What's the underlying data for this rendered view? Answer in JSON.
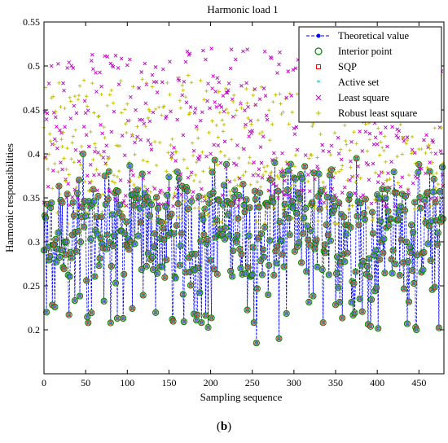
{
  "caption": {
    "open": "(",
    "letter": "b",
    "close": ")"
  },
  "chart_data": {
    "type": "line",
    "title": "Harmonic load 1",
    "xlabel": "Sampling sequence",
    "ylabel": "Harmonic responsibilities",
    "xlim": [
      0,
      480
    ],
    "ylim": [
      0.15,
      0.55
    ],
    "xticks": [
      0,
      50,
      100,
      150,
      200,
      250,
      300,
      350,
      400,
      450
    ],
    "yticks": [
      0.2,
      0.25,
      0.3,
      0.35,
      0.4,
      0.45,
      0.5,
      0.55
    ],
    "grid": false,
    "legend_position": "top-right",
    "n_points": 480,
    "series": [
      {
        "name": "Theoretical value",
        "color": "#0000ff",
        "marker": "dot",
        "style": "dashed-line"
      },
      {
        "name": "Interior point",
        "color": "#008000",
        "marker": "circle"
      },
      {
        "name": "SQP",
        "color": "#ff0000",
        "marker": "square"
      },
      {
        "name": "Active set",
        "color": "#00bfbf",
        "marker": "asterisk"
      },
      {
        "name": "Least square",
        "color": "#bf00bf",
        "marker": "cross",
        "range": [
          0.34,
          0.52
        ]
      },
      {
        "name": "Robust least square",
        "color": "#bfbf00",
        "marker": "plus",
        "range": [
          0.32,
          0.49
        ]
      }
    ],
    "sample_values": [
      {
        "x": 1,
        "y": 0.33
      },
      {
        "x": 3,
        "y": 0.22
      },
      {
        "x": 13,
        "y": 0.226
      },
      {
        "x": 30,
        "y": 0.217
      },
      {
        "x": 47,
        "y": 0.4
      },
      {
        "x": 53,
        "y": 0.208
      },
      {
        "x": 78,
        "y": 0.38
      },
      {
        "x": 88,
        "y": 0.213
      },
      {
        "x": 95,
        "y": 0.213
      },
      {
        "x": 154,
        "y": 0.212
      },
      {
        "x": 180,
        "y": 0.218
      },
      {
        "x": 205,
        "y": 0.393
      },
      {
        "x": 255,
        "y": 0.185
      },
      {
        "x": 282,
        "y": 0.19
      },
      {
        "x": 375,
        "y": 0.395
      },
      {
        "x": 447,
        "y": 0.2
      },
      {
        "x": 478,
        "y": 0.385
      }
    ]
  }
}
